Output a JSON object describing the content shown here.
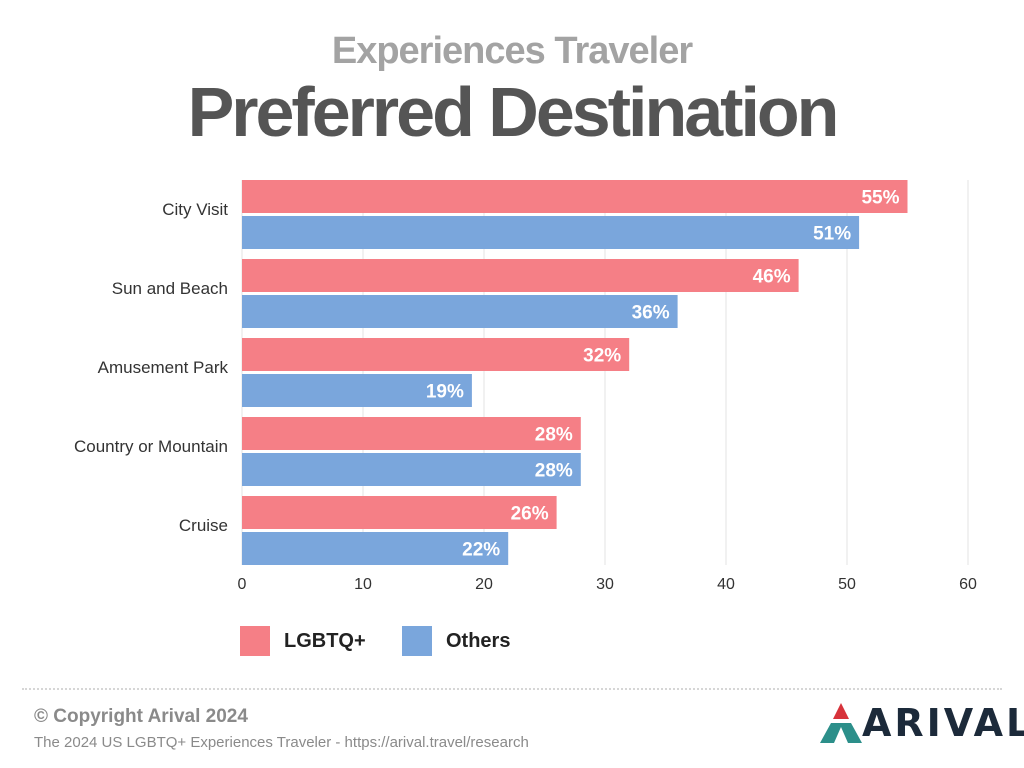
{
  "header": {
    "supertitle": "Experiences Traveler",
    "title": "Preferred Destination"
  },
  "colors": {
    "lgbtq": "#f57f86",
    "others": "#7aa6dc",
    "grid": "#e3e3e3",
    "axis_text": "#333333",
    "bar_label": "#ffffff",
    "brand_red": "#d7333b",
    "brand_teal": "#2c8f8a",
    "brand_dark": "#1c2a3a"
  },
  "chart_data": {
    "type": "bar",
    "orientation": "horizontal",
    "categories": [
      "City Visit",
      "Sun and Beach",
      "Amusement Park",
      "Country or Mountain",
      "Cruise"
    ],
    "series": [
      {
        "name": "LGBTQ+",
        "values": [
          55,
          46,
          32,
          28,
          26
        ],
        "labels": [
          "55%",
          "46%",
          "32%",
          "28%",
          "26%"
        ]
      },
      {
        "name": "Others",
        "values": [
          51,
          36,
          19,
          28,
          22
        ],
        "labels": [
          "51%",
          "36%",
          "19%",
          "28%",
          "22%"
        ]
      }
    ],
    "xlim": [
      0,
      60
    ],
    "xticks": [
      0,
      10,
      20,
      30,
      40,
      50,
      60
    ],
    "grid": true,
    "legend_position": "bottom-left"
  },
  "footer": {
    "copyright": "© Copyright Arival 2024",
    "source": "The 2024 US LGBTQ+ Experiences Traveler - https://arival.travel/research",
    "brand": "ARIVAL"
  }
}
